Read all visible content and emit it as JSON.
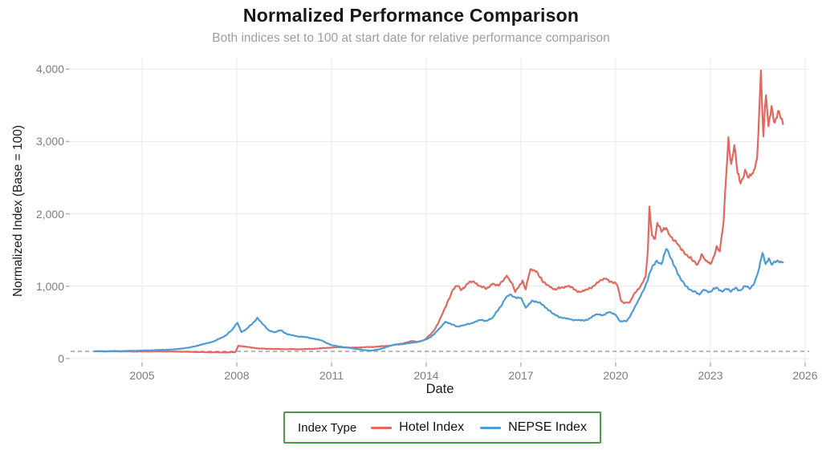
{
  "header": {
    "title": "Normalized Performance Comparison",
    "subtitle": "Both indices set to 100 at start date for relative performance comparison"
  },
  "axes": {
    "x": {
      "label": "Date",
      "ticks": [
        {
          "value": 2005,
          "label": "2005"
        },
        {
          "value": 2008,
          "label": "2008"
        },
        {
          "value": 2011,
          "label": "2011"
        },
        {
          "value": 2014,
          "label": "2014"
        },
        {
          "value": 2017,
          "label": "2017"
        },
        {
          "value": 2020,
          "label": "2020"
        },
        {
          "value": 2023,
          "label": "2023"
        },
        {
          "value": 2026,
          "label": "2026"
        }
      ],
      "range": [
        2002.75,
        2026.15
      ]
    },
    "y": {
      "label": "Normalized Index (Base = 100)",
      "ticks": [
        {
          "value": 0,
          "label": "0"
        },
        {
          "value": 1000,
          "label": "1,000"
        },
        {
          "value": 2000,
          "label": "2,000"
        },
        {
          "value": 3000,
          "label": "3,000"
        },
        {
          "value": 4000,
          "label": "4,000"
        }
      ],
      "range": [
        0,
        4160
      ]
    }
  },
  "legend": {
    "title": "Index Type",
    "border_color": "#449a47"
  },
  "colors": {
    "hotel": "#e0685e",
    "nepse": "#4f9bd4",
    "grid": "#e9e9e9",
    "baseline": "#8f8f8f",
    "tick_mark": "#b0b0b0",
    "tick_text": "#7d7d7d",
    "subtitle": "#9e9e9e",
    "title": "#171717"
  },
  "chart_data": {
    "type": "line",
    "title": "Normalized Performance Comparison",
    "subtitle": "Both indices set to 100 at start date for relative performance comparison",
    "xlabel": "Date",
    "ylabel": "Normalized Index (Base = 100)",
    "x_ticks": [
      2005,
      2008,
      2011,
      2014,
      2017,
      2020,
      2023,
      2026
    ],
    "ylim": [
      0,
      4160
    ],
    "grid": true,
    "legend_position": "bottom",
    "baseline_y": 100,
    "series": [
      {
        "name": "Hotel Index",
        "color": "#e0685e",
        "points": [
          [
            2003.5,
            100
          ],
          [
            2004,
            100
          ],
          [
            2004.5,
            98
          ],
          [
            2005,
            97
          ],
          [
            2005.5,
            100
          ],
          [
            2006,
            97
          ],
          [
            2006.5,
            93
          ],
          [
            2007,
            88
          ],
          [
            2007.5,
            85
          ],
          [
            2007.95,
            88
          ],
          [
            2008.05,
            178
          ],
          [
            2008.3,
            162
          ],
          [
            2008.55,
            148
          ],
          [
            2008.7,
            138
          ],
          [
            2009,
            134
          ],
          [
            2009.5,
            130
          ],
          [
            2010,
            128
          ],
          [
            2010.5,
            136
          ],
          [
            2011,
            152
          ],
          [
            2011.3,
            157
          ],
          [
            2011.6,
            150
          ],
          [
            2012,
            156
          ],
          [
            2012.4,
            162
          ],
          [
            2012.8,
            176
          ],
          [
            2013.1,
            196
          ],
          [
            2013.35,
            218
          ],
          [
            2013.55,
            242
          ],
          [
            2013.75,
            230
          ],
          [
            2013.95,
            258
          ],
          [
            2014.1,
            320
          ],
          [
            2014.25,
            390
          ],
          [
            2014.4,
            505
          ],
          [
            2014.55,
            655
          ],
          [
            2014.7,
            810
          ],
          [
            2014.85,
            955
          ],
          [
            2015,
            1005
          ],
          [
            2015.1,
            945
          ],
          [
            2015.3,
            1035
          ],
          [
            2015.5,
            1065
          ],
          [
            2015.7,
            1005
          ],
          [
            2015.9,
            962
          ],
          [
            2016.1,
            1035
          ],
          [
            2016.3,
            1005
          ],
          [
            2016.55,
            1145
          ],
          [
            2016.7,
            1050
          ],
          [
            2016.82,
            918
          ],
          [
            2016.95,
            1010
          ],
          [
            2017.05,
            1080
          ],
          [
            2017.15,
            955
          ],
          [
            2017.3,
            1235
          ],
          [
            2017.5,
            1205
          ],
          [
            2017.7,
            1055
          ],
          [
            2017.9,
            1000
          ],
          [
            2018.1,
            950
          ],
          [
            2018.3,
            985
          ],
          [
            2018.5,
            1005
          ],
          [
            2018.7,
            950
          ],
          [
            2018.9,
            920
          ],
          [
            2019.1,
            952
          ],
          [
            2019.3,
            1005
          ],
          [
            2019.55,
            1085
          ],
          [
            2019.7,
            1105
          ],
          [
            2019.9,
            1050
          ],
          [
            2020.05,
            1015
          ],
          [
            2020.18,
            790
          ],
          [
            2020.3,
            770
          ],
          [
            2020.45,
            775
          ],
          [
            2020.6,
            905
          ],
          [
            2020.8,
            1010
          ],
          [
            2020.95,
            1130
          ],
          [
            2021.02,
            1500
          ],
          [
            2021.07,
            2100
          ],
          [
            2021.15,
            1705
          ],
          [
            2021.25,
            1655
          ],
          [
            2021.32,
            1875
          ],
          [
            2021.45,
            1750
          ],
          [
            2021.6,
            1805
          ],
          [
            2021.72,
            1700
          ],
          [
            2021.85,
            1625
          ],
          [
            2022,
            1565
          ],
          [
            2022.15,
            1485
          ],
          [
            2022.3,
            1405
          ],
          [
            2022.45,
            1345
          ],
          [
            2022.6,
            1300
          ],
          [
            2022.72,
            1445
          ],
          [
            2022.85,
            1355
          ],
          [
            2023,
            1305
          ],
          [
            2023.1,
            1405
          ],
          [
            2023.2,
            1555
          ],
          [
            2023.3,
            1480
          ],
          [
            2023.42,
            1900
          ],
          [
            2023.5,
            2520
          ],
          [
            2023.57,
            3060
          ],
          [
            2023.66,
            2690
          ],
          [
            2023.76,
            2950
          ],
          [
            2023.86,
            2560
          ],
          [
            2023.96,
            2420
          ],
          [
            2024.1,
            2610
          ],
          [
            2024.22,
            2500
          ],
          [
            2024.35,
            2560
          ],
          [
            2024.48,
            2760
          ],
          [
            2024.6,
            3980
          ],
          [
            2024.68,
            3070
          ],
          [
            2024.76,
            3640
          ],
          [
            2024.84,
            3210
          ],
          [
            2024.94,
            3490
          ],
          [
            2025.04,
            3260
          ],
          [
            2025.14,
            3420
          ],
          [
            2025.3,
            3240
          ]
        ]
      },
      {
        "name": "NEPSE Index",
        "color": "#4f9bd4",
        "points": [
          [
            2003.5,
            100
          ],
          [
            2004,
            102
          ],
          [
            2004.5,
            105
          ],
          [
            2005,
            110
          ],
          [
            2005.5,
            118
          ],
          [
            2006,
            126
          ],
          [
            2006.5,
            152
          ],
          [
            2007,
            205
          ],
          [
            2007.3,
            242
          ],
          [
            2007.6,
            305
          ],
          [
            2007.85,
            395
          ],
          [
            2008.02,
            495
          ],
          [
            2008.15,
            365
          ],
          [
            2008.3,
            405
          ],
          [
            2008.5,
            485
          ],
          [
            2008.65,
            565
          ],
          [
            2008.8,
            485
          ],
          [
            2009,
            395
          ],
          [
            2009.2,
            362
          ],
          [
            2009.4,
            392
          ],
          [
            2009.6,
            335
          ],
          [
            2009.85,
            312
          ],
          [
            2010.1,
            300
          ],
          [
            2010.4,
            278
          ],
          [
            2010.7,
            248
          ],
          [
            2011,
            185
          ],
          [
            2011.3,
            162
          ],
          [
            2011.55,
            150
          ],
          [
            2011.8,
            132
          ],
          [
            2012.05,
            116
          ],
          [
            2012.25,
            110
          ],
          [
            2012.5,
            126
          ],
          [
            2012.75,
            162
          ],
          [
            2013,
            192
          ],
          [
            2013.3,
            202
          ],
          [
            2013.6,
            222
          ],
          [
            2013.85,
            242
          ],
          [
            2014.05,
            275
          ],
          [
            2014.25,
            335
          ],
          [
            2014.45,
            430
          ],
          [
            2014.6,
            508
          ],
          [
            2014.8,
            472
          ],
          [
            2015,
            442
          ],
          [
            2015.2,
            462
          ],
          [
            2015.45,
            492
          ],
          [
            2015.7,
            532
          ],
          [
            2015.9,
            522
          ],
          [
            2016.1,
            562
          ],
          [
            2016.3,
            685
          ],
          [
            2016.5,
            825
          ],
          [
            2016.65,
            885
          ],
          [
            2016.8,
            852
          ],
          [
            2017,
            838
          ],
          [
            2017.15,
            702
          ],
          [
            2017.35,
            802
          ],
          [
            2017.5,
            782
          ],
          [
            2017.7,
            742
          ],
          [
            2018,
            622
          ],
          [
            2018.3,
            562
          ],
          [
            2018.55,
            542
          ],
          [
            2018.8,
            532
          ],
          [
            2019,
            522
          ],
          [
            2019.2,
            562
          ],
          [
            2019.4,
            612
          ],
          [
            2019.6,
            602
          ],
          [
            2019.8,
            642
          ],
          [
            2020,
            605
          ],
          [
            2020.15,
            512
          ],
          [
            2020.35,
            515
          ],
          [
            2020.55,
            660
          ],
          [
            2020.72,
            805
          ],
          [
            2020.9,
            955
          ],
          [
            2021.1,
            1205
          ],
          [
            2021.3,
            1355
          ],
          [
            2021.45,
            1305
          ],
          [
            2021.6,
            1515
          ],
          [
            2021.75,
            1385
          ],
          [
            2021.9,
            1255
          ],
          [
            2022.05,
            1105
          ],
          [
            2022.2,
            1005
          ],
          [
            2022.35,
            952
          ],
          [
            2022.5,
            932
          ],
          [
            2022.65,
            882
          ],
          [
            2022.8,
            952
          ],
          [
            2023,
            922
          ],
          [
            2023.2,
            982
          ],
          [
            2023.35,
            932
          ],
          [
            2023.5,
            962
          ],
          [
            2023.65,
            922
          ],
          [
            2023.8,
            982
          ],
          [
            2023.95,
            942
          ],
          [
            2024.1,
            1002
          ],
          [
            2024.25,
            962
          ],
          [
            2024.4,
            1052
          ],
          [
            2024.55,
            1255
          ],
          [
            2024.65,
            1460
          ],
          [
            2024.75,
            1305
          ],
          [
            2024.85,
            1385
          ],
          [
            2024.95,
            1295
          ],
          [
            2025.1,
            1345
          ],
          [
            2025.3,
            1332
          ]
        ]
      }
    ]
  }
}
